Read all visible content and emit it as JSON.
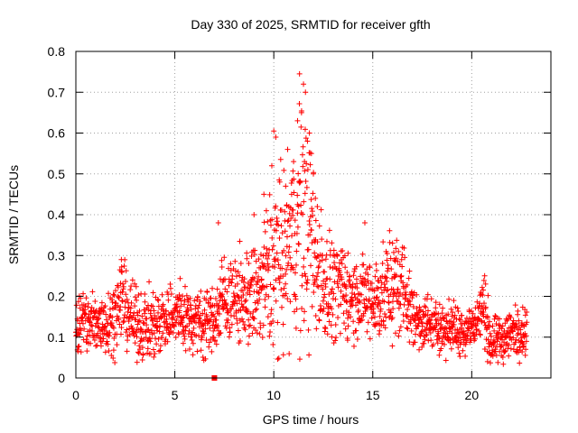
{
  "chart_data": {
    "type": "scatter",
    "title": "Day 330 of 2025, SRMTID for receiver gfth",
    "xlabel": "GPS time / hours",
    "ylabel": "SRMTID / TECUs",
    "xlim": [
      0,
      24
    ],
    "ylim": [
      0,
      0.8
    ],
    "xticks": [
      0,
      5,
      10,
      15,
      20
    ],
    "yticks": [
      0,
      0.1,
      0.2,
      0.3,
      0.4,
      0.5,
      0.6,
      0.7,
      0.8
    ],
    "xtick_labels": [
      "0",
      "5",
      "10",
      "15",
      "20"
    ],
    "ytick_labels": [
      "0",
      "0.1",
      "0.2",
      "0.3",
      "0.4",
      "0.5",
      "0.6",
      "0.7",
      "0.8"
    ],
    "grid": true,
    "legend": "none",
    "marker": "+",
    "color": "#ff0000",
    "series_description": "SRMTID values sampled through the day; approximate trend envelope",
    "trend": {
      "x": [
        0,
        1,
        2,
        2.3,
        3,
        4,
        5,
        6,
        7,
        7.5,
        8,
        9,
        9.5,
        10,
        10.5,
        11,
        11.5,
        12,
        12.5,
        13,
        14,
        15,
        16,
        16.5,
        17,
        18,
        19,
        20,
        20.6,
        21,
        22,
        22.8
      ],
      "y": [
        0.14,
        0.13,
        0.15,
        0.2,
        0.13,
        0.13,
        0.16,
        0.14,
        0.14,
        0.2,
        0.19,
        0.2,
        0.23,
        0.28,
        0.28,
        0.33,
        0.4,
        0.3,
        0.24,
        0.22,
        0.2,
        0.19,
        0.22,
        0.23,
        0.15,
        0.13,
        0.12,
        0.12,
        0.17,
        0.08,
        0.11,
        0.12
      ],
      "spread": [
        0.04,
        0.04,
        0.04,
        0.05,
        0.04,
        0.04,
        0.04,
        0.04,
        0.04,
        0.05,
        0.05,
        0.06,
        0.08,
        0.12,
        0.1,
        0.12,
        0.15,
        0.1,
        0.07,
        0.06,
        0.05,
        0.05,
        0.06,
        0.06,
        0.04,
        0.03,
        0.03,
        0.03,
        0.04,
        0.03,
        0.03,
        0.03
      ]
    },
    "highlights": [
      {
        "x": 11.3,
        "y": 0.745
      },
      {
        "x": 11.5,
        "y": 0.72
      },
      {
        "x": 11.6,
        "y": 0.7
      },
      {
        "x": 10.0,
        "y": 0.605
      },
      {
        "x": 10.1,
        "y": 0.59
      },
      {
        "x": 11.4,
        "y": 0.65
      },
      {
        "x": 11.8,
        "y": 0.6
      },
      {
        "x": 11.2,
        "y": 0.63
      },
      {
        "x": 10.7,
        "y": 0.56
      },
      {
        "x": 9.9,
        "y": 0.52
      },
      {
        "x": 11.9,
        "y": 0.55
      },
      {
        "x": 11.7,
        "y": 0.58
      },
      {
        "x": 10.3,
        "y": 0.48
      },
      {
        "x": 11.0,
        "y": 0.53
      },
      {
        "x": 12.0,
        "y": 0.5
      },
      {
        "x": 9.5,
        "y": 0.45
      },
      {
        "x": 10.6,
        "y": 0.47
      },
      {
        "x": 11.55,
        "y": 0.53
      },
      {
        "x": 12.1,
        "y": 0.44
      },
      {
        "x": 12.2,
        "y": 0.42
      },
      {
        "x": 10.9,
        "y": 0.45
      },
      {
        "x": 9.0,
        "y": 0.4
      },
      {
        "x": 14.6,
        "y": 0.38
      },
      {
        "x": 7.2,
        "y": 0.38
      },
      {
        "x": 16.0,
        "y": 0.33
      },
      {
        "x": 2.3,
        "y": 0.29
      },
      {
        "x": 20.7,
        "y": 0.23
      },
      {
        "x": 20.8,
        "y": 0.04
      },
      {
        "x": 20.9,
        "y": 0.06
      }
    ],
    "marker_square": {
      "x": 7.0,
      "y": 0.0
    }
  }
}
